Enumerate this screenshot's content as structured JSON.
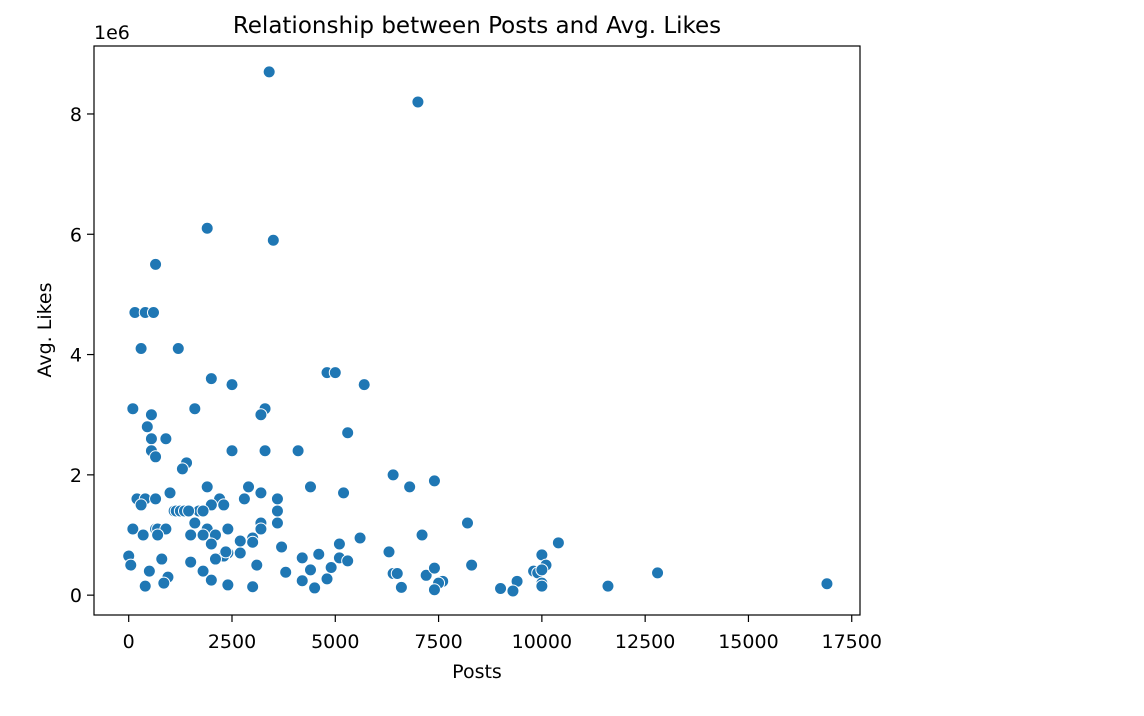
{
  "chart_data": {
    "type": "scatter",
    "title": "Relationship between Posts and Avg. Likes",
    "xlabel": "Posts",
    "ylabel": "Avg. Likes",
    "y_offset_label": "1e6",
    "xlim": [
      -840,
      17700
    ],
    "ylim": [
      -0.33,
      9.13
    ],
    "x_ticks": [
      0,
      2500,
      5000,
      7500,
      10000,
      12500,
      15000,
      17500
    ],
    "x_tick_labels": [
      "0",
      "2500",
      "5000",
      "7500",
      "10000",
      "12500",
      "15000",
      "17500"
    ],
    "y_ticks": [
      0,
      2,
      4,
      6,
      8
    ],
    "y_tick_labels": [
      "0",
      "2",
      "4",
      "6",
      "8"
    ],
    "grid": false,
    "marker_color": "#1f77b4",
    "points": [
      [
        3400,
        8.7
      ],
      [
        7000,
        8.2
      ],
      [
        1900,
        6.1
      ],
      [
        3500,
        5.9
      ],
      [
        650,
        5.5
      ],
      [
        150,
        4.7
      ],
      [
        400,
        4.7
      ],
      [
        600,
        4.7
      ],
      [
        300,
        4.1
      ],
      [
        1200,
        4.1
      ],
      [
        4800,
        3.7
      ],
      [
        5000,
        3.7
      ],
      [
        2000,
        3.6
      ],
      [
        5700,
        3.5
      ],
      [
        2500,
        3.5
      ],
      [
        100,
        3.1
      ],
      [
        1600,
        3.1
      ],
      [
        3300,
        3.1
      ],
      [
        3200,
        3.0
      ],
      [
        550,
        3.0
      ],
      [
        450,
        2.8
      ],
      [
        5300,
        2.7
      ],
      [
        550,
        2.6
      ],
      [
        900,
        2.6
      ],
      [
        550,
        2.4
      ],
      [
        2500,
        2.4
      ],
      [
        3300,
        2.4
      ],
      [
        4100,
        2.4
      ],
      [
        650,
        2.3
      ],
      [
        1400,
        2.2
      ],
      [
        1300,
        2.1
      ],
      [
        6400,
        2.0
      ],
      [
        7400,
        1.9
      ],
      [
        4400,
        1.8
      ],
      [
        6800,
        1.8
      ],
      [
        1900,
        1.8
      ],
      [
        2900,
        1.8
      ],
      [
        1000,
        1.7
      ],
      [
        3200,
        1.7
      ],
      [
        5200,
        1.7
      ],
      [
        200,
        1.6
      ],
      [
        400,
        1.6
      ],
      [
        650,
        1.6
      ],
      [
        2200,
        1.6
      ],
      [
        2800,
        1.6
      ],
      [
        3600,
        1.6
      ],
      [
        300,
        1.5
      ],
      [
        2000,
        1.5
      ],
      [
        2300,
        1.5
      ],
      [
        1700,
        1.4
      ],
      [
        1800,
        1.4
      ],
      [
        1100,
        1.4
      ],
      [
        1150,
        1.4
      ],
      [
        1250,
        1.4
      ],
      [
        1350,
        1.4
      ],
      [
        1450,
        1.4
      ],
      [
        3600,
        1.4
      ],
      [
        1600,
        1.2
      ],
      [
        3200,
        1.2
      ],
      [
        3600,
        1.2
      ],
      [
        8200,
        1.2
      ],
      [
        100,
        1.1
      ],
      [
        650,
        1.1
      ],
      [
        700,
        1.1
      ],
      [
        900,
        1.1
      ],
      [
        1900,
        1.1
      ],
      [
        2400,
        1.1
      ],
      [
        3200,
        1.1
      ],
      [
        1500,
        1.0
      ],
      [
        1800,
        1.0
      ],
      [
        2100,
        1.0
      ],
      [
        350,
        1.0
      ],
      [
        700,
        1.0
      ],
      [
        7100,
        1.0
      ],
      [
        2000,
        0.85
      ],
      [
        2700,
        0.9
      ],
      [
        3000,
        0.95
      ],
      [
        3000,
        0.88
      ],
      [
        5100,
        0.85
      ],
      [
        5600,
        0.95
      ],
      [
        10400,
        0.87
      ],
      [
        3700,
        0.8
      ],
      [
        2400,
        0.7
      ],
      [
        2700,
        0.7
      ],
      [
        2300,
        0.65
      ],
      [
        2350,
        0.72
      ],
      [
        4600,
        0.68
      ],
      [
        6300,
        0.72
      ],
      [
        10000,
        0.67
      ],
      [
        0,
        0.65
      ],
      [
        800,
        0.6
      ],
      [
        2100,
        0.6
      ],
      [
        4200,
        0.62
      ],
      [
        5100,
        0.62
      ],
      [
        5300,
        0.57
      ],
      [
        1500,
        0.55
      ],
      [
        3100,
        0.5
      ],
      [
        50,
        0.5
      ],
      [
        8300,
        0.5
      ],
      [
        10100,
        0.5
      ],
      [
        500,
        0.4
      ],
      [
        1800,
        0.4
      ],
      [
        3800,
        0.38
      ],
      [
        4400,
        0.42
      ],
      [
        4900,
        0.46
      ],
      [
        6400,
        0.36
      ],
      [
        6500,
        0.36
      ],
      [
        7200,
        0.33
      ],
      [
        7400,
        0.45
      ],
      [
        9800,
        0.4
      ],
      [
        9900,
        0.37
      ],
      [
        10000,
        0.42
      ],
      [
        12800,
        0.37
      ],
      [
        950,
        0.3
      ],
      [
        2000,
        0.25
      ],
      [
        4200,
        0.24
      ],
      [
        4800,
        0.27
      ],
      [
        7600,
        0.23
      ],
      [
        7500,
        0.2
      ],
      [
        9400,
        0.23
      ],
      [
        10000,
        0.2
      ],
      [
        10000,
        0.15
      ],
      [
        11600,
        0.15
      ],
      [
        16900,
        0.19
      ],
      [
        400,
        0.15
      ],
      [
        850,
        0.2
      ],
      [
        2400,
        0.17
      ],
      [
        3000,
        0.14
      ],
      [
        4500,
        0.12
      ],
      [
        6600,
        0.13
      ],
      [
        7400,
        0.09
      ],
      [
        9000,
        0.11
      ],
      [
        9300,
        0.07
      ]
    ]
  }
}
